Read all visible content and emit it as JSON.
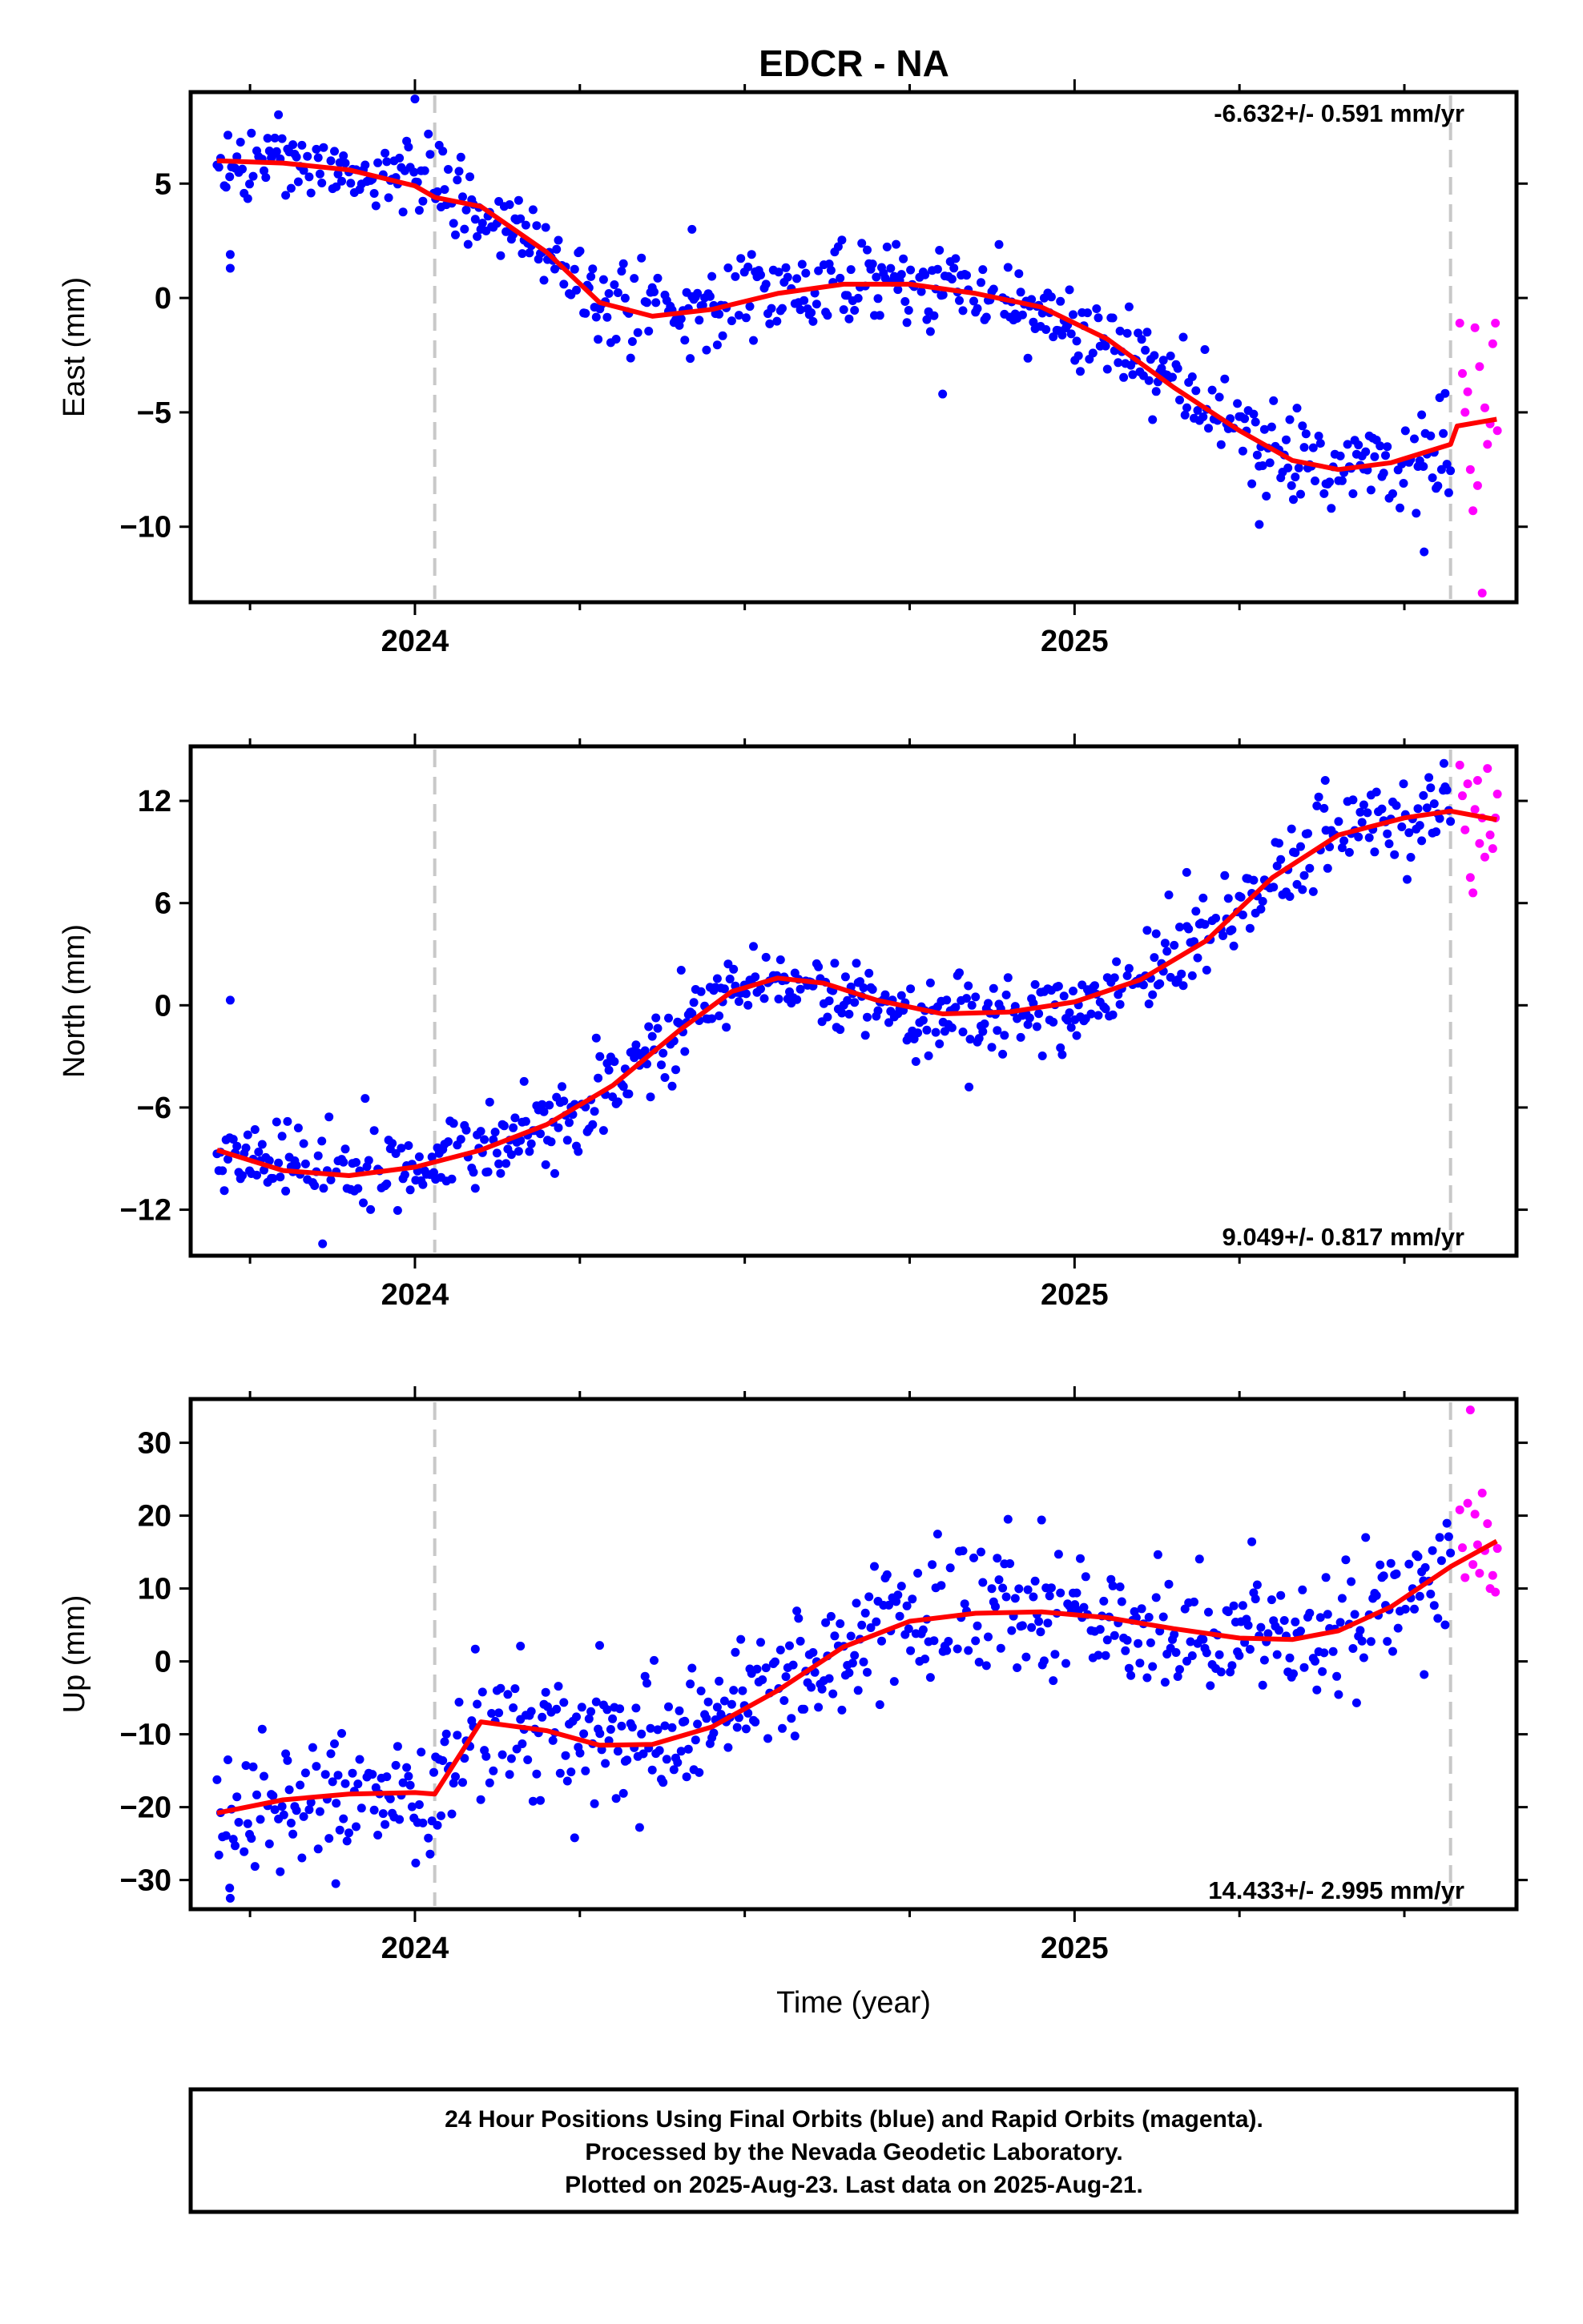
{
  "title": "EDCR - NA",
  "footer": {
    "lines": [
      "24 Hour Positions Using Final Orbits (blue) and Rapid Orbits (magenta).",
      "Processed by the Nevada Geodetic Laboratory.",
      "Plotted on 2025-Aug-23. Last data on 2025-Aug-21."
    ]
  },
  "colors": {
    "final_orbits": "#0000ff",
    "rapid_orbits": "#ff00ff",
    "model": "#ff0000",
    "event_line": "#c8c8c8"
  },
  "chart_data": [
    {
      "type": "scatter",
      "panel": "east",
      "xlabel": "",
      "ylabel": "East (mm)",
      "xlim": [
        2023.66,
        2025.67
      ],
      "ylim": [
        -13.3,
        9.0
      ],
      "xticks": [
        2024,
        2025
      ],
      "yticks": [
        -10,
        -5,
        0,
        5
      ],
      "ytick_labels": [
        "−10",
        "−5",
        "0",
        "5"
      ],
      "rate_text": "-6.632+/- 0.591 mm/yr",
      "rate_position": "top-right",
      "event_lines_x": [
        2024.03,
        2025.57
      ],
      "final_period": [
        2023.7,
        2025.57
      ],
      "rapid_period": [
        2025.58,
        2025.64
      ],
      "model_offset_at_event": 1.2,
      "model_knots": [
        [
          2023.7,
          6.0
        ],
        [
          2023.8,
          5.9
        ],
        [
          2023.9,
          5.6
        ],
        [
          2024.0,
          4.9
        ],
        [
          2024.03,
          4.4
        ],
        [
          2024.1,
          4.0
        ],
        [
          2024.2,
          2.0
        ],
        [
          2024.28,
          -0.2
        ],
        [
          2024.36,
          -0.8
        ],
        [
          2024.45,
          -0.5
        ],
        [
          2024.55,
          0.2
        ],
        [
          2024.65,
          0.6
        ],
        [
          2024.75,
          0.6
        ],
        [
          2024.85,
          0.2
        ],
        [
          2024.95,
          -0.4
        ],
        [
          2025.05,
          -1.8
        ],
        [
          2025.15,
          -3.9
        ],
        [
          2025.25,
          -5.8
        ],
        [
          2025.33,
          -7.1
        ],
        [
          2025.4,
          -7.5
        ],
        [
          2025.48,
          -7.2
        ],
        [
          2025.57,
          -6.4
        ],
        [
          2025.58,
          -5.6
        ],
        [
          2025.62,
          -5.4
        ],
        [
          2025.64,
          -5.3
        ]
      ],
      "rapid_points": [
        [
          2025.584,
          -1.1
        ],
        [
          2025.588,
          -3.3
        ],
        [
          2025.592,
          -5.0
        ],
        [
          2025.596,
          -4.1
        ],
        [
          2025.6,
          -7.5
        ],
        [
          2025.604,
          -9.3
        ],
        [
          2025.607,
          -1.3
        ],
        [
          2025.611,
          -8.2
        ],
        [
          2025.614,
          -3.0
        ],
        [
          2025.618,
          -12.9
        ],
        [
          2025.622,
          -4.8
        ],
        [
          2025.626,
          -6.4
        ],
        [
          2025.63,
          -5.5
        ],
        [
          2025.634,
          -2.0
        ],
        [
          2025.638,
          -1.1
        ],
        [
          2025.641,
          -5.8
        ]
      ],
      "scatter_noise_sd": 1.0,
      "outliers": [
        [
          2023.72,
          1.3
        ],
        [
          2023.72,
          1.9
        ],
        [
          2024.0,
          8.7
        ],
        [
          2024.42,
          3.0
        ],
        [
          2024.8,
          -4.2
        ],
        [
          2025.28,
          -9.9
        ],
        [
          2025.53,
          -11.1
        ]
      ]
    },
    {
      "type": "scatter",
      "panel": "north",
      "xlabel": "",
      "ylabel": "North (mm)",
      "xlim": [
        2023.66,
        2025.67
      ],
      "ylim": [
        -14.7,
        15.2
      ],
      "xticks": [
        2024,
        2025
      ],
      "yticks": [
        -12,
        -6,
        0,
        6,
        12
      ],
      "ytick_labels": [
        "−12",
        "−6",
        "0",
        "6",
        "12"
      ],
      "rate_text": "9.049+/- 0.817 mm/yr",
      "rate_position": "bottom-right",
      "event_lines_x": [
        2024.03,
        2025.57
      ],
      "final_period": [
        2023.7,
        2025.57
      ],
      "rapid_period": [
        2025.58,
        2025.64
      ],
      "model_offset_at_event": 0,
      "model_knots": [
        [
          2023.7,
          -8.5
        ],
        [
          2023.8,
          -9.7
        ],
        [
          2023.9,
          -10.0
        ],
        [
          2024.0,
          -9.5
        ],
        [
          2024.1,
          -8.5
        ],
        [
          2024.2,
          -7.0
        ],
        [
          2024.3,
          -4.7
        ],
        [
          2024.4,
          -1.5
        ],
        [
          2024.48,
          0.8
        ],
        [
          2024.55,
          1.6
        ],
        [
          2024.62,
          1.3
        ],
        [
          2024.7,
          0.3
        ],
        [
          2024.8,
          -0.5
        ],
        [
          2024.9,
          -0.4
        ],
        [
          2025.0,
          0.2
        ],
        [
          2025.1,
          1.5
        ],
        [
          2025.2,
          3.8
        ],
        [
          2025.3,
          7.5
        ],
        [
          2025.4,
          10.0
        ],
        [
          2025.5,
          11.0
        ],
        [
          2025.57,
          11.4
        ],
        [
          2025.64,
          10.9
        ]
      ],
      "rapid_points": [
        [
          2025.584,
          14.1
        ],
        [
          2025.588,
          12.3
        ],
        [
          2025.592,
          10.3
        ],
        [
          2025.596,
          13.0
        ],
        [
          2025.6,
          7.5
        ],
        [
          2025.604,
          6.6
        ],
        [
          2025.607,
          11.5
        ],
        [
          2025.611,
          13.2
        ],
        [
          2025.614,
          9.5
        ],
        [
          2025.618,
          11.0
        ],
        [
          2025.622,
          8.7
        ],
        [
          2025.626,
          13.9
        ],
        [
          2025.63,
          10.0
        ],
        [
          2025.634,
          9.2
        ],
        [
          2025.638,
          11.0
        ],
        [
          2025.641,
          12.4
        ]
      ],
      "scatter_noise_sd": 1.2,
      "outliers": [
        [
          2023.72,
          0.3
        ],
        [
          2023.86,
          -14.0
        ],
        [
          2024.84,
          -4.8
        ],
        [
          2025.17,
          7.8
        ],
        [
          2025.38,
          13.2
        ],
        [
          2025.56,
          14.2
        ]
      ]
    },
    {
      "type": "scatter",
      "panel": "up",
      "xlabel": "Time (year)",
      "ylabel": "Up (mm)",
      "xlim": [
        2023.66,
        2025.67
      ],
      "ylim": [
        -34.0,
        36.0
      ],
      "xticks": [
        2024,
        2025
      ],
      "yticks": [
        -30,
        -20,
        -10,
        0,
        10,
        20,
        30
      ],
      "ytick_labels": [
        "−30",
        "−20",
        "−10",
        "0",
        "10",
        "20",
        "30"
      ],
      "rate_text": "14.433+/- 2.995 mm/yr",
      "rate_position": "bottom-right",
      "event_lines_x": [
        2024.03,
        2025.57
      ],
      "final_period": [
        2023.7,
        2025.57
      ],
      "rapid_period": [
        2025.58,
        2025.64
      ],
      "model_offset_at_event": 10.5,
      "model_knots": [
        [
          2023.7,
          -20.8
        ],
        [
          2023.8,
          -19.0
        ],
        [
          2023.9,
          -18.2
        ],
        [
          2024.0,
          -18.0
        ],
        [
          2024.03,
          -18.2
        ],
        [
          2024.1,
          -8.3
        ],
        [
          2024.2,
          -9.5
        ],
        [
          2024.28,
          -11.5
        ],
        [
          2024.36,
          -11.4
        ],
        [
          2024.45,
          -9.0
        ],
        [
          2024.55,
          -4.0
        ],
        [
          2024.65,
          2.0
        ],
        [
          2024.75,
          5.5
        ],
        [
          2024.85,
          6.6
        ],
        [
          2024.95,
          6.8
        ],
        [
          2025.05,
          6.0
        ],
        [
          2025.15,
          4.5
        ],
        [
          2025.25,
          3.2
        ],
        [
          2025.33,
          3.0
        ],
        [
          2025.4,
          4.2
        ],
        [
          2025.48,
          7.5
        ],
        [
          2025.57,
          13.0
        ],
        [
          2025.64,
          16.5
        ]
      ],
      "rapid_points": [
        [
          2025.584,
          20.8
        ],
        [
          2025.588,
          15.6
        ],
        [
          2025.592,
          11.5
        ],
        [
          2025.596,
          21.7
        ],
        [
          2025.6,
          34.5
        ],
        [
          2025.604,
          13.3
        ],
        [
          2025.607,
          20.2
        ],
        [
          2025.611,
          16.0
        ],
        [
          2025.614,
          12.1
        ],
        [
          2025.618,
          23.1
        ],
        [
          2025.622,
          15.2
        ],
        [
          2025.626,
          18.9
        ],
        [
          2025.63,
          10.0
        ],
        [
          2025.634,
          11.8
        ],
        [
          2025.638,
          9.5
        ],
        [
          2025.641,
          15.5
        ]
      ],
      "scatter_noise_sd": 4.5,
      "outliers": [
        [
          2023.72,
          -32.5
        ],
        [
          2023.88,
          -30.5
        ],
        [
          2024.16,
          2.1
        ],
        [
          2024.28,
          2.2
        ],
        [
          2024.95,
          19.4
        ],
        [
          2025.53,
          -1.8
        ]
      ]
    }
  ]
}
